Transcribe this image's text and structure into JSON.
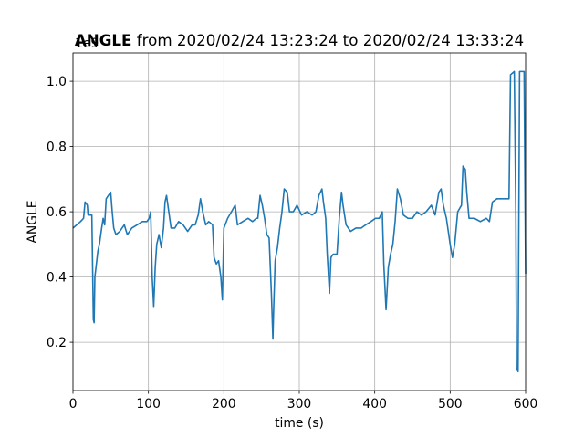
{
  "chart_data": {
    "type": "line",
    "title": [
      "ANGLE",
      "from 2020/02/24 13:23:24 to 2020/02/24 13:33:24"
    ],
    "offset_label": "1e9",
    "xlabel": "time (s)",
    "ylabel": "ANGLE",
    "color": "#1f77b4",
    "grid": true,
    "xlim": [
      0,
      600
    ],
    "ylim": [
      0.052,
      1.087
    ],
    "xticks": [
      0,
      100,
      200,
      300,
      400,
      500,
      600
    ],
    "yticks": [
      0.2,
      0.4,
      0.6,
      0.8,
      {
        "value": 1,
        "label": "1.0"
      }
    ],
    "x": [
      0,
      5,
      10,
      14,
      16,
      19,
      20,
      25,
      27,
      28,
      29,
      31,
      33,
      35,
      38,
      40,
      42,
      44,
      47,
      50,
      52,
      54,
      57,
      62,
      68,
      72,
      78,
      85,
      92,
      98,
      101,
      103,
      105,
      107,
      109,
      111,
      114,
      117,
      120,
      122,
      124,
      127,
      130,
      135,
      140,
      146,
      152,
      158,
      162,
      166,
      169,
      172,
      176,
      180,
      185,
      187,
      190,
      193,
      196,
      198,
      200,
      205,
      210,
      215,
      218,
      225,
      232,
      238,
      243,
      245,
      248,
      251,
      254,
      257,
      260,
      263,
      265,
      266,
      268,
      271,
      274,
      277,
      280,
      284,
      287,
      292,
      297,
      303,
      310,
      317,
      322,
      326,
      330,
      332,
      335,
      337,
      340,
      342,
      345,
      350,
      353,
      356,
      358,
      362,
      368,
      375,
      382,
      388,
      395,
      401,
      406,
      410,
      412,
      415,
      418,
      421,
      424,
      427,
      430,
      434,
      438,
      444,
      450,
      456,
      462,
      468,
      475,
      480,
      485,
      488,
      491,
      495,
      500,
      503,
      506,
      510,
      515,
      517,
      520,
      522,
      525,
      532,
      540,
      548,
      552,
      556,
      562,
      570,
      578,
      580,
      585,
      587,
      588,
      590,
      592,
      598,
      600
    ],
    "values": [
      0.55,
      0.56,
      0.57,
      0.58,
      0.63,
      0.62,
      0.59,
      0.59,
      0.27,
      0.26,
      0.4,
      0.44,
      0.48,
      0.5,
      0.55,
      0.58,
      0.56,
      0.64,
      0.65,
      0.66,
      0.6,
      0.55,
      0.53,
      0.54,
      0.56,
      0.53,
      0.55,
      0.56,
      0.57,
      0.57,
      0.58,
      0.6,
      0.4,
      0.31,
      0.43,
      0.5,
      0.53,
      0.49,
      0.55,
      0.63,
      0.65,
      0.6,
      0.55,
      0.55,
      0.57,
      0.56,
      0.54,
      0.56,
      0.56,
      0.59,
      0.64,
      0.6,
      0.56,
      0.57,
      0.56,
      0.46,
      0.44,
      0.45,
      0.4,
      0.33,
      0.55,
      0.58,
      0.6,
      0.62,
      0.56,
      0.57,
      0.58,
      0.57,
      0.58,
      0.58,
      0.65,
      0.62,
      0.58,
      0.53,
      0.52,
      0.35,
      0.21,
      0.3,
      0.45,
      0.49,
      0.55,
      0.6,
      0.67,
      0.66,
      0.6,
      0.6,
      0.62,
      0.59,
      0.6,
      0.59,
      0.6,
      0.65,
      0.67,
      0.63,
      0.58,
      0.47,
      0.35,
      0.46,
      0.47,
      0.47,
      0.58,
      0.66,
      0.62,
      0.56,
      0.54,
      0.55,
      0.55,
      0.56,
      0.57,
      0.58,
      0.58,
      0.6,
      0.44,
      0.3,
      0.43,
      0.47,
      0.5,
      0.57,
      0.67,
      0.64,
      0.59,
      0.58,
      0.58,
      0.6,
      0.59,
      0.6,
      0.62,
      0.59,
      0.66,
      0.67,
      0.62,
      0.58,
      0.5,
      0.46,
      0.5,
      0.6,
      0.62,
      0.74,
      0.73,
      0.66,
      0.58,
      0.58,
      0.57,
      0.58,
      0.57,
      0.63,
      0.64,
      0.64,
      0.64,
      1.02,
      1.03,
      0.6,
      0.12,
      0.11,
      1.03,
      1.03,
      0.41
    ]
  }
}
